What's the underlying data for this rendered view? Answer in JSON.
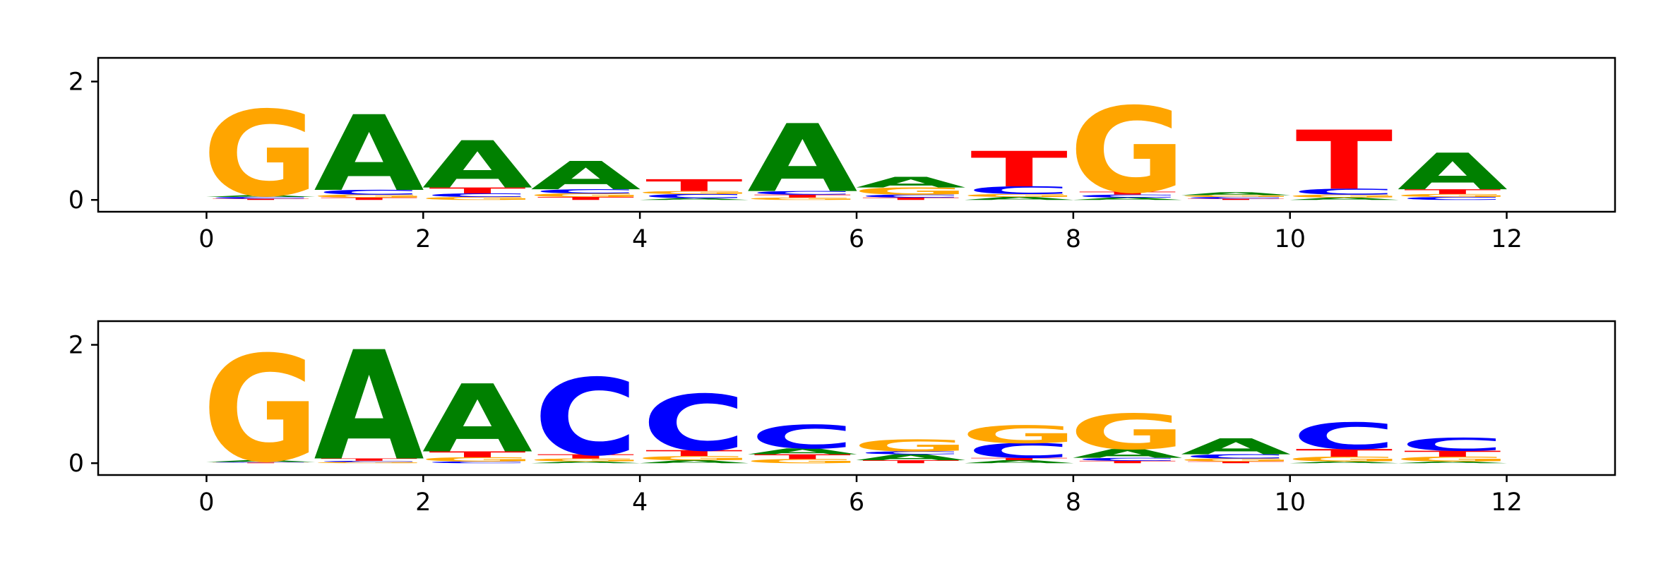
{
  "chart_data": [
    {
      "type": "sequence-logo",
      "title": "",
      "xlabel": "",
      "ylabel": "",
      "xlim": [
        -1,
        13
      ],
      "ylim": [
        -0.2,
        2.4
      ],
      "xticks": [
        "0",
        "2",
        "4",
        "6",
        "8",
        "10",
        "12"
      ],
      "yticks": [
        "0",
        "2"
      ],
      "grid": false,
      "colors": {
        "A": "#008000",
        "C": "#0000ff",
        "G": "#ffa500",
        "T": "#ff0000"
      },
      "positions": [
        {
          "pos": 0,
          "letters": [
            {
              "base": "T",
              "height": 0.02
            },
            {
              "base": "C",
              "height": 0.03
            },
            {
              "base": "A",
              "height": 0.03
            },
            {
              "base": "G",
              "height": 1.45
            }
          ]
        },
        {
          "pos": 1,
          "letters": [
            {
              "base": "T",
              "height": 0.04
            },
            {
              "base": "G",
              "height": 0.05
            },
            {
              "base": "C",
              "height": 0.08
            },
            {
              "base": "A",
              "height": 1.28
            }
          ]
        },
        {
          "pos": 2,
          "letters": [
            {
              "base": "G",
              "height": 0.05
            },
            {
              "base": "C",
              "height": 0.06
            },
            {
              "base": "T",
              "height": 0.1
            },
            {
              "base": "A",
              "height": 0.8
            }
          ]
        },
        {
          "pos": 3,
          "letters": [
            {
              "base": "T",
              "height": 0.05
            },
            {
              "base": "G",
              "height": 0.06
            },
            {
              "base": "C",
              "height": 0.07
            },
            {
              "base": "A",
              "height": 0.48
            }
          ]
        },
        {
          "pos": 4,
          "letters": [
            {
              "base": "A",
              "height": 0.03
            },
            {
              "base": "C",
              "height": 0.07
            },
            {
              "base": "G",
              "height": 0.05
            },
            {
              "base": "T",
              "height": 0.2
            }
          ]
        },
        {
          "pos": 5,
          "letters": [
            {
              "base": "G",
              "height": 0.04
            },
            {
              "base": "T",
              "height": 0.05
            },
            {
              "base": "C",
              "height": 0.06
            },
            {
              "base": "A",
              "height": 1.15
            }
          ]
        },
        {
          "pos": 6,
          "letters": [
            {
              "base": "T",
              "height": 0.04
            },
            {
              "base": "C",
              "height": 0.05
            },
            {
              "base": "G",
              "height": 0.12
            },
            {
              "base": "A",
              "height": 0.18
            }
          ]
        },
        {
          "pos": 7,
          "letters": [
            {
              "base": "A",
              "height": 0.05
            },
            {
              "base": "G",
              "height": 0.05
            },
            {
              "base": "C",
              "height": 0.13
            },
            {
              "base": "T",
              "height": 0.6
            }
          ]
        },
        {
          "pos": 8,
          "letters": [
            {
              "base": "A",
              "height": 0.04
            },
            {
              "base": "C",
              "height": 0.05
            },
            {
              "base": "T",
              "height": 0.05
            },
            {
              "base": "G",
              "height": 1.45
            }
          ]
        },
        {
          "pos": 9,
          "letters": [
            {
              "base": "T",
              "height": 0.02
            },
            {
              "base": "C",
              "height": 0.03
            },
            {
              "base": "G",
              "height": 0.03
            },
            {
              "base": "A",
              "height": 0.05
            }
          ]
        },
        {
          "pos": 10,
          "letters": [
            {
              "base": "A",
              "height": 0.04
            },
            {
              "base": "G",
              "height": 0.05
            },
            {
              "base": "C",
              "height": 0.1
            },
            {
              "base": "T",
              "height": 1.0
            }
          ]
        },
        {
          "pos": 11,
          "letters": [
            {
              "base": "C",
              "height": 0.05
            },
            {
              "base": "G",
              "height": 0.05
            },
            {
              "base": "T",
              "height": 0.08
            },
            {
              "base": "A",
              "height": 0.62
            }
          ]
        }
      ]
    },
    {
      "type": "sequence-logo",
      "title": "",
      "xlabel": "",
      "ylabel": "",
      "xlim": [
        -1,
        13
      ],
      "ylim": [
        -0.2,
        2.4
      ],
      "xticks": [
        "0",
        "2",
        "4",
        "6",
        "8",
        "10",
        "12"
      ],
      "yticks": [
        "0",
        "2"
      ],
      "grid": false,
      "colors": {
        "A": "#008000",
        "C": "#0000ff",
        "G": "#ffa500",
        "T": "#ff0000"
      },
      "positions": [
        {
          "pos": 0,
          "letters": [
            {
              "base": "T",
              "height": 0.01
            },
            {
              "base": "C",
              "height": 0.01
            },
            {
              "base": "A",
              "height": 0.03
            },
            {
              "base": "G",
              "height": 1.8
            }
          ]
        },
        {
          "pos": 1,
          "letters": [
            {
              "base": "G",
              "height": 0.02
            },
            {
              "base": "C",
              "height": 0.02
            },
            {
              "base": "T",
              "height": 0.04
            },
            {
              "base": "A",
              "height": 1.85
            }
          ]
        },
        {
          "pos": 2,
          "letters": [
            {
              "base": "C",
              "height": 0.03
            },
            {
              "base": "G",
              "height": 0.07
            },
            {
              "base": "T",
              "height": 0.1
            },
            {
              "base": "A",
              "height": 1.15
            }
          ]
        },
        {
          "pos": 3,
          "letters": [
            {
              "base": "A",
              "height": 0.03
            },
            {
              "base": "G",
              "height": 0.05
            },
            {
              "base": "T",
              "height": 0.07
            },
            {
              "base": "C",
              "height": 1.3
            }
          ]
        },
        {
          "pos": 4,
          "letters": [
            {
              "base": "A",
              "height": 0.05
            },
            {
              "base": "G",
              "height": 0.07
            },
            {
              "base": "T",
              "height": 0.1
            },
            {
              "base": "C",
              "height": 0.95
            }
          ]
        },
        {
          "pos": 5,
          "letters": [
            {
              "base": "G",
              "height": 0.07
            },
            {
              "base": "T",
              "height": 0.08
            },
            {
              "base": "A",
              "height": 0.1
            },
            {
              "base": "C",
              "height": 0.4
            }
          ]
        },
        {
          "pos": 6,
          "letters": [
            {
              "base": "T",
              "height": 0.05
            },
            {
              "base": "A",
              "height": 0.1
            },
            {
              "base": "C",
              "height": 0.05
            },
            {
              "base": "G",
              "height": 0.2
            }
          ]
        },
        {
          "pos": 7,
          "letters": [
            {
              "base": "A",
              "height": 0.05
            },
            {
              "base": "T",
              "height": 0.04
            },
            {
              "base": "C",
              "height": 0.25
            },
            {
              "base": "G",
              "height": 0.3
            }
          ]
        },
        {
          "pos": 8,
          "letters": [
            {
              "base": "T",
              "height": 0.04
            },
            {
              "base": "C",
              "height": 0.05
            },
            {
              "base": "A",
              "height": 0.15
            },
            {
              "base": "G",
              "height": 0.6
            }
          ]
        },
        {
          "pos": 9,
          "letters": [
            {
              "base": "T",
              "height": 0.03
            },
            {
              "base": "G",
              "height": 0.05
            },
            {
              "base": "C",
              "height": 0.07
            },
            {
              "base": "A",
              "height": 0.27
            }
          ]
        },
        {
          "pos": 10,
          "letters": [
            {
              "base": "A",
              "height": 0.03
            },
            {
              "base": "G",
              "height": 0.08
            },
            {
              "base": "T",
              "height": 0.13
            },
            {
              "base": "C",
              "height": 0.45
            }
          ]
        },
        {
          "pos": 11,
          "letters": [
            {
              "base": "A",
              "height": 0.03
            },
            {
              "base": "G",
              "height": 0.08
            },
            {
              "base": "T",
              "height": 0.1
            },
            {
              "base": "C",
              "height": 0.22
            }
          ]
        }
      ]
    }
  ]
}
